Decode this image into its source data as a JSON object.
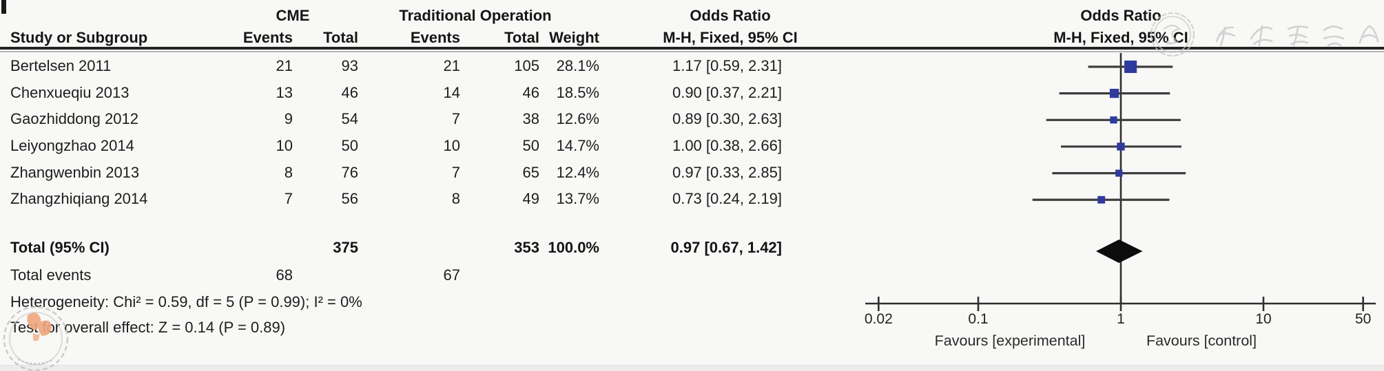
{
  "header": {
    "group1_label": "CME",
    "group2_label": "Traditional Operation",
    "col_study": "Study or Subgroup",
    "col_events": "Events",
    "col_total": "Total",
    "col_weight": "Weight",
    "or_title": "Odds Ratio",
    "or_subtitle": "M-H, Fixed, 95% CI"
  },
  "studies": [
    {
      "name": "Bertelsen 2011",
      "cme_events": "21",
      "cme_total": "93",
      "trad_events": "21",
      "trad_total": "105",
      "weight": "28.1%",
      "or_ci": "1.17 [0.59, 2.31]"
    },
    {
      "name": "Chenxueqiu 2013",
      "cme_events": "13",
      "cme_total": "46",
      "trad_events": "14",
      "trad_total": "46",
      "weight": "18.5%",
      "or_ci": "0.90 [0.37, 2.21]"
    },
    {
      "name": "Gaozhiddong 2012",
      "cme_events": "9",
      "cme_total": "54",
      "trad_events": "7",
      "trad_total": "38",
      "weight": "12.6%",
      "or_ci": "0.89 [0.30, 2.63]"
    },
    {
      "name": "Leiyongzhao 2014",
      "cme_events": "10",
      "cme_total": "50",
      "trad_events": "10",
      "trad_total": "50",
      "weight": "14.7%",
      "or_ci": "1.00 [0.38, 2.66]"
    },
    {
      "name": "Zhangwenbin 2013",
      "cme_events": "8",
      "cme_total": "76",
      "trad_events": "7",
      "trad_total": "65",
      "weight": "12.4%",
      "or_ci": "0.97 [0.33, 2.85]"
    },
    {
      "name": "Zhangzhiqiang 2014",
      "cme_events": "7",
      "cme_total": "56",
      "trad_events": "8",
      "trad_total": "49",
      "weight": "13.7%",
      "or_ci": "0.73 [0.24, 2.19]"
    }
  ],
  "totals": {
    "label": "Total (95% CI)",
    "cme_total": "375",
    "trad_total": "353",
    "weight": "100.0%",
    "or_ci": "0.97 [0.67, 1.42]",
    "events_label": "Total events",
    "cme_events": "68",
    "trad_events": "67"
  },
  "footer": {
    "heterogeneity": "Heterogeneity: Chi² = 0.59, df = 5 (P = 0.99); I² = 0%",
    "overall_effect": "Test for overall effect: Z = 0.14 (P = 0.89)"
  },
  "axis": {
    "tick_labels": [
      "0.02",
      "0.1",
      "1",
      "10",
      "50"
    ],
    "favours_left": "Favours [experimental]",
    "favours_right": "Favours [control]"
  },
  "watermark": {
    "publisher_text": "中华医学会"
  },
  "colors": {
    "square_blue": "#2e3a9e",
    "ci_line": "#3d3d3d",
    "axis_line": "#2f2f2f",
    "diamond_black": "#0c0c0c",
    "watermark_gray": "#c3c3c3",
    "seal_orange": "#f0a67e"
  },
  "chart_data": {
    "type": "scatter",
    "subtype": "forest-plot",
    "title": "Odds Ratio",
    "effect_measure": "M-H, Fixed, 95% CI",
    "x_scale": "log",
    "x_ticks": [
      0.02,
      0.1,
      1,
      10,
      50
    ],
    "x_range": [
      0.02,
      50
    ],
    "null_line": 1,
    "studies": [
      {
        "name": "Bertelsen 2011",
        "or": 1.17,
        "ci_low": 0.59,
        "ci_high": 2.31,
        "weight_pct": 28.1
      },
      {
        "name": "Chenxueqiu 2013",
        "or": 0.9,
        "ci_low": 0.37,
        "ci_high": 2.21,
        "weight_pct": 18.5
      },
      {
        "name": "Gaozhiddong 2012",
        "or": 0.89,
        "ci_low": 0.3,
        "ci_high": 2.63,
        "weight_pct": 12.6
      },
      {
        "name": "Leiyongzhao 2014",
        "or": 1.0,
        "ci_low": 0.38,
        "ci_high": 2.66,
        "weight_pct": 14.7
      },
      {
        "name": "Zhangwenbin 2013",
        "or": 0.97,
        "ci_low": 0.33,
        "ci_high": 2.85,
        "weight_pct": 12.4
      },
      {
        "name": "Zhangzhiqiang 2014",
        "or": 0.73,
        "ci_low": 0.24,
        "ci_high": 2.19,
        "weight_pct": 13.7
      }
    ],
    "total": {
      "label": "Total (95% CI)",
      "or": 0.97,
      "ci_low": 0.67,
      "ci_high": 1.42,
      "weight_pct": 100.0
    },
    "heterogeneity": {
      "chi2": 0.59,
      "df": 5,
      "p": 0.99,
      "i2_pct": 0
    },
    "overall_effect": {
      "z": 0.14,
      "p": 0.89
    },
    "xlabel_left": "Favours [experimental]",
    "xlabel_right": "Favours [control]",
    "legend_position": "none",
    "grid": false
  }
}
